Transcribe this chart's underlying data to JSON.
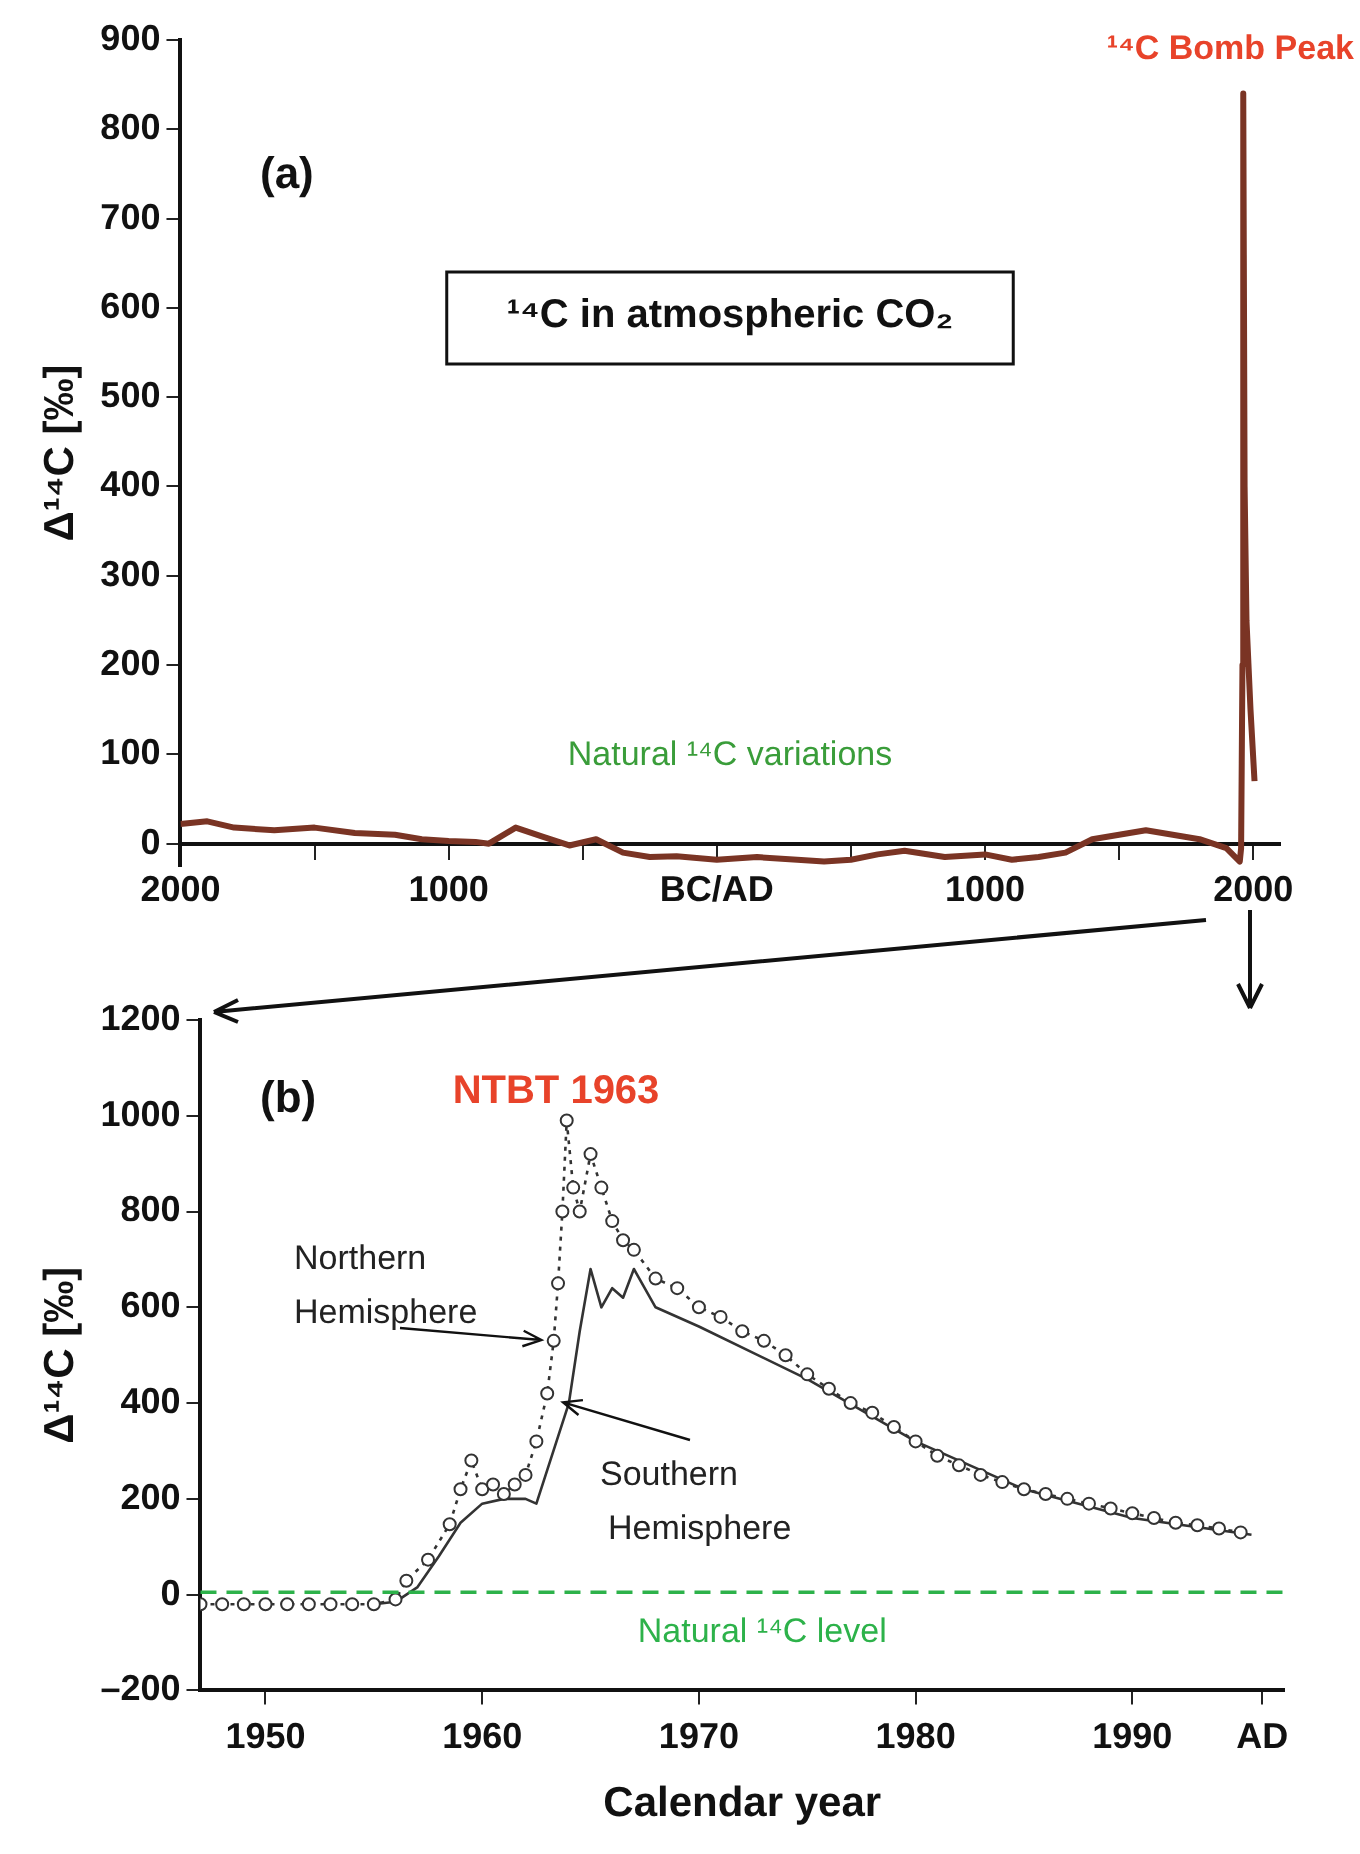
{
  "chart_data": [
    {
      "type": "line",
      "ylabel": "Δ¹⁴C [‰]",
      "xlim": [
        -2000,
        2100
      ],
      "ylim": [
        -25,
        900
      ],
      "xticks": [
        {
          "value": -2000,
          "label": "2000"
        },
        {
          "value": -1500,
          "label": null
        },
        {
          "value": -1000,
          "label": "1000"
        },
        {
          "value": -500,
          "label": null
        },
        {
          "value": 0,
          "label": "BC/AD"
        },
        {
          "value": 500,
          "label": null
        },
        {
          "value": 1000,
          "label": "1000"
        },
        {
          "value": 1500,
          "label": null
        },
        {
          "value": 2000,
          "label": "2000"
        }
      ],
      "yticks": [
        0,
        100,
        200,
        300,
        400,
        500,
        600,
        700,
        800,
        900
      ],
      "grid": false,
      "legend": false,
      "marker": "none",
      "line_style": "solid",
      "annotations": [
        "(a)",
        "¹⁴C in atmospheric CO₂",
        {
          "text": "¹⁴C Bomb Peak",
          "x": 1963,
          "y": 840
        },
        "Natural ¹⁴C variations"
      ],
      "series": [
        {
          "color": "#7a3424",
          "x": [
            -2000,
            -1900,
            -1800,
            -1650,
            -1500,
            -1350,
            -1200,
            -1100,
            -1000,
            -900,
            -850,
            -750,
            -650,
            -550,
            -450,
            -350,
            -250,
            -150,
            0,
            150,
            300,
            400,
            500,
            600,
            700,
            850,
            1000,
            1100,
            1200,
            1300,
            1400,
            1500,
            1600,
            1700,
            1800,
            1900,
            1950,
            1955,
            1960,
            1963,
            1968,
            1975,
            1990,
            2005
          ],
          "values": [
            22,
            25,
            18,
            15,
            18,
            12,
            10,
            5,
            3,
            2,
            0,
            18,
            8,
            -2,
            5,
            -10,
            -15,
            -14,
            -18,
            -15,
            -18,
            -20,
            -18,
            -12,
            -8,
            -15,
            -12,
            -18,
            -15,
            -10,
            5,
            10,
            15,
            10,
            5,
            -5,
            -20,
            -5,
            200,
            840,
            400,
            250,
            150,
            70
          ]
        }
      ]
    },
    {
      "type": "line",
      "xlabel": "Calendar year",
      "ylabel": "Δ¹⁴C [‰]",
      "xlim": [
        1947,
        1997
      ],
      "ylim": [
        -200,
        1200
      ],
      "xticks": [
        1950,
        1960,
        1970,
        1980,
        1990,
        {
          "value": 1996,
          "label": "AD"
        }
      ],
      "yticks": [
        {
          "value": -200,
          "label": "–200"
        },
        0,
        200,
        400,
        600,
        800,
        1000,
        1200
      ],
      "grid": false,
      "legend": false,
      "annotations": [
        "(b)",
        "NTBT 1963"
      ],
      "ref_lines": [
        {
          "axis": "y",
          "value": 5,
          "label": "Natural ¹⁴C level",
          "color": "#2db24a",
          "line_style": "dashed"
        }
      ],
      "series": [
        {
          "name": "Northern Hemisphere",
          "color": "#333333",
          "marker": "circle",
          "line_style": "dotted",
          "x": [
            1947,
            1948,
            1949,
            1950,
            1951,
            1952,
            1953,
            1954,
            1955,
            1956,
            1956.5,
            1957.5,
            1958.5,
            1959,
            1959.5,
            1960,
            1960.5,
            1961,
            1961.5,
            1962,
            1962.5,
            1963,
            1963.3,
            1963.5,
            1963.7,
            1963.9,
            1964.2,
            1964.5,
            1965,
            1965.5,
            1966,
            1966.5,
            1967,
            1968,
            1969,
            1970,
            1971,
            1972,
            1973,
            1974,
            1975,
            1976,
            1977,
            1978,
            1979,
            1980,
            1981,
            1982,
            1983,
            1984,
            1985,
            1986,
            1987,
            1988,
            1989,
            1990,
            1991,
            1992,
            1993,
            1994,
            1995
          ],
          "values": [
            -20,
            -20,
            -20,
            -20,
            -20,
            -20,
            -20,
            -20,
            -20,
            -10,
            29,
            73,
            147,
            220,
            280,
            220,
            230,
            210,
            230,
            250,
            320,
            420,
            530,
            650,
            800,
            990,
            850,
            800,
            920,
            850,
            780,
            740,
            720,
            660,
            640,
            600,
            580,
            550,
            530,
            500,
            460,
            430,
            400,
            380,
            350,
            320,
            290,
            270,
            250,
            235,
            220,
            210,
            200,
            190,
            180,
            170,
            160,
            150,
            145,
            138,
            130
          ]
        },
        {
          "name": "Southern Hemisphere",
          "color": "#333333",
          "marker": "none",
          "line_style": "solid",
          "x": [
            1955,
            1956,
            1957,
            1958,
            1959,
            1960,
            1961,
            1962,
            1962.5,
            1963,
            1963.5,
            1964,
            1964.5,
            1965,
            1965.5,
            1966,
            1966.5,
            1967,
            1968,
            1970,
            1975,
            1980,
            1985,
            1990,
            1995.5
          ],
          "values": [
            -20,
            -15,
            15,
            80,
            150,
            190,
            200,
            200,
            190,
            260,
            330,
            400,
            550,
            680,
            600,
            640,
            620,
            680,
            600,
            560,
            450,
            320,
            220,
            160,
            125
          ]
        }
      ]
    }
  ]
}
